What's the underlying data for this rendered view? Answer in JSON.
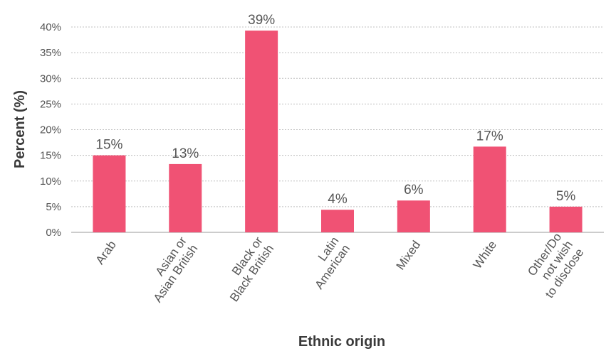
{
  "chart_data": {
    "type": "bar",
    "xlabel": "Ethnic origin",
    "ylabel": "Percent (%)",
    "ylim": [
      0,
      40
    ],
    "yticks": [
      "0%",
      "5%",
      "10%",
      "15%",
      "20%",
      "25%",
      "30%",
      "35%",
      "40%"
    ],
    "grid": true,
    "categories": [
      [
        "Arab"
      ],
      [
        "Asian or",
        "Asian British"
      ],
      [
        "Black or",
        "Black British"
      ],
      [
        "Latin",
        "American"
      ],
      [
        "Mixed"
      ],
      [
        "White"
      ],
      [
        "Other/Do",
        "not wish",
        "to disclose"
      ]
    ],
    "values": [
      15,
      13.3,
      39.3,
      4.4,
      6.2,
      16.7,
      5
    ],
    "data_labels": [
      "15%",
      "13%",
      "39%",
      "4%",
      "6%",
      "17%",
      "5%"
    ],
    "bar_color": "#f05274",
    "grid_color": "#bfbfbf",
    "text_color": "#555555"
  }
}
